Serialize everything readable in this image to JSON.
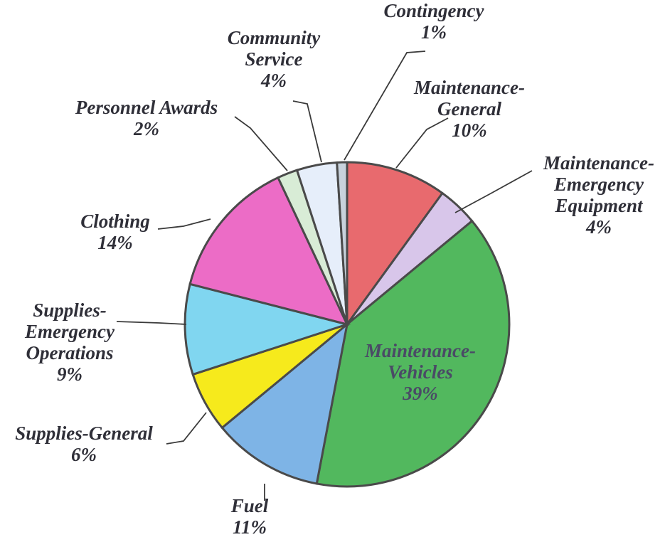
{
  "chart_data": {
    "type": "pie",
    "slices": [
      {
        "name": "Maintenance-General",
        "lines": [
          "Maintenance-",
          "General",
          "10%"
        ],
        "value": 10,
        "color": "#e86a6e"
      },
      {
        "name": "Maintenance-Emergency Equipment",
        "lines": [
          "Maintenance-",
          "Emergency",
          "Equipment",
          "4%"
        ],
        "value": 4,
        "color": "#d8c6ea"
      },
      {
        "name": "Maintenance-Vehicles",
        "lines": [
          "Maintenance-",
          "Vehicles",
          "39%"
        ],
        "value": 39,
        "color": "#52b85e"
      },
      {
        "name": "Fuel",
        "lines": [
          "Fuel",
          "11%"
        ],
        "value": 11,
        "color": "#7eb4e6"
      },
      {
        "name": "Supplies-General",
        "lines": [
          "Supplies-General",
          "6%"
        ],
        "value": 6,
        "color": "#f6ea1c"
      },
      {
        "name": "Supplies-Emergency Operations",
        "lines": [
          "Supplies-",
          "Emergency",
          "Operations",
          "9%"
        ],
        "value": 9,
        "color": "#80d6f0"
      },
      {
        "name": "Clothing",
        "lines": [
          "Clothing",
          "14%"
        ],
        "value": 14,
        "color": "#ec6cc6"
      },
      {
        "name": "Personnel Awards",
        "lines": [
          "Personnel Awards",
          "2%"
        ],
        "value": 2,
        "color": "#d8ecd6"
      },
      {
        "name": "Community Service",
        "lines": [
          "Community",
          "Service",
          "4%"
        ],
        "value": 4,
        "color": "#e6eefa"
      },
      {
        "name": "Contingency",
        "lines": [
          "Contingency",
          "1%"
        ],
        "value": 1,
        "color": "#c8d2dc"
      }
    ],
    "start": "12 o'clock",
    "direction": "clockwise",
    "legend": "none"
  }
}
